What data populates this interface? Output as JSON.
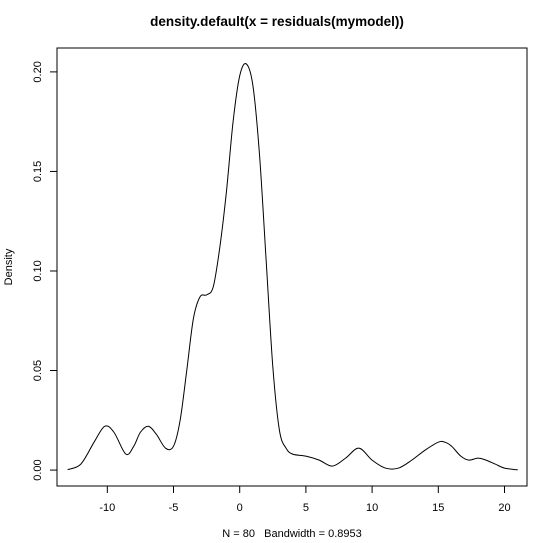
{
  "chart_data": {
    "type": "line",
    "title": "density.default(x = residuals(mymodel))",
    "xlabel": "N = 80   Bandwidth = 0.8953",
    "ylabel": "Density",
    "xlim": [
      -13.8,
      21.7
    ],
    "ylim": [
      -0.008,
      0.212
    ],
    "x_ticks": [
      -10,
      -5,
      0,
      5,
      10,
      15,
      20
    ],
    "x_tick_labels": [
      "-10",
      "-5",
      "0",
      "5",
      "10",
      "15",
      "20"
    ],
    "y_ticks": [
      0.0,
      0.05,
      0.1,
      0.15,
      0.2
    ],
    "y_tick_labels": [
      "0.00",
      "0.05",
      "0.10",
      "0.15",
      "0.20"
    ],
    "grid": false,
    "legend": "none",
    "series": [
      {
        "x": [
          -13.0,
          -12.0,
          -11.0,
          -10.2,
          -9.5,
          -8.6,
          -8.0,
          -7.5,
          -6.9,
          -6.3,
          -5.6,
          -5.0,
          -4.5,
          -4.0,
          -3.5,
          -3.0,
          -2.5,
          -2.0,
          -1.5,
          -1.0,
          -0.5,
          0.0,
          0.5,
          1.0,
          1.5,
          2.0,
          2.5,
          3.0,
          3.5,
          4.0,
          5.0,
          6.0,
          7.0,
          8.0,
          9.0,
          10.0,
          11.0,
          12.0,
          13.0,
          14.0,
          15.0,
          15.5,
          16.0,
          16.7,
          17.3,
          18.0,
          18.6,
          19.3,
          20.0,
          21.0
        ],
        "y": [
          0.0002,
          0.003,
          0.014,
          0.022,
          0.019,
          0.008,
          0.012,
          0.019,
          0.022,
          0.018,
          0.011,
          0.012,
          0.025,
          0.05,
          0.076,
          0.087,
          0.088,
          0.092,
          0.112,
          0.14,
          0.175,
          0.198,
          0.204,
          0.193,
          0.158,
          0.105,
          0.052,
          0.02,
          0.011,
          0.008,
          0.007,
          0.005,
          0.002,
          0.006,
          0.011,
          0.005,
          0.001,
          0.001,
          0.005,
          0.01,
          0.014,
          0.014,
          0.012,
          0.007,
          0.005,
          0.006,
          0.005,
          0.003,
          0.001,
          0.0001
        ]
      }
    ]
  }
}
